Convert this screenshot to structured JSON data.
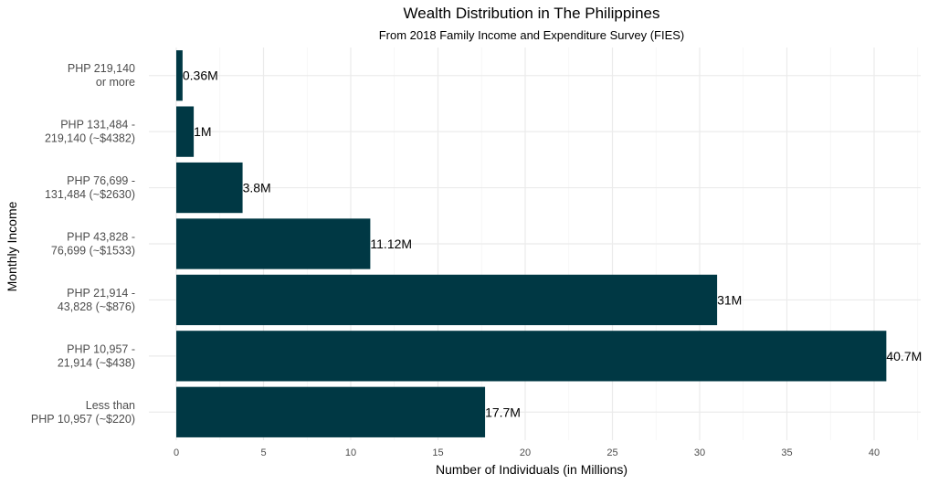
{
  "chart_data": {
    "type": "bar",
    "orientation": "horizontal",
    "title": "Wealth Distribution in The Philippines",
    "subtitle": "From 2018 Family Income and Expenditure Survey (FIES)",
    "xlabel": "Number of Individuals (in Millions)",
    "ylabel": "Monthly Income",
    "xlim": [
      0,
      42.5
    ],
    "xticks": [
      0,
      5,
      10,
      15,
      20,
      25,
      30,
      35,
      40
    ],
    "grid": true,
    "bar_color": "#003844",
    "categories": [
      [
        "PHP 219,140",
        "or more"
      ],
      [
        "PHP 131,484 -",
        "219,140 (~$4382)"
      ],
      [
        "PHP 76,699 -",
        "131,484 (~$2630)"
      ],
      [
        "PHP 43,828 -",
        "76,699 (~$1533)"
      ],
      [
        "PHP 21,914 -",
        "43,828 (~$876)"
      ],
      [
        "PHP 10,957 -",
        "21,914 (~$438)"
      ],
      [
        "Less than",
        "PHP 10,957 (~$220)"
      ]
    ],
    "values": [
      0.36,
      1,
      3.8,
      11.12,
      31,
      40.7,
      17.7
    ],
    "value_labels": [
      "0.36M",
      "1M",
      "3.8M",
      "11.12M",
      "31M",
      "40.7M",
      "17.7M"
    ]
  }
}
